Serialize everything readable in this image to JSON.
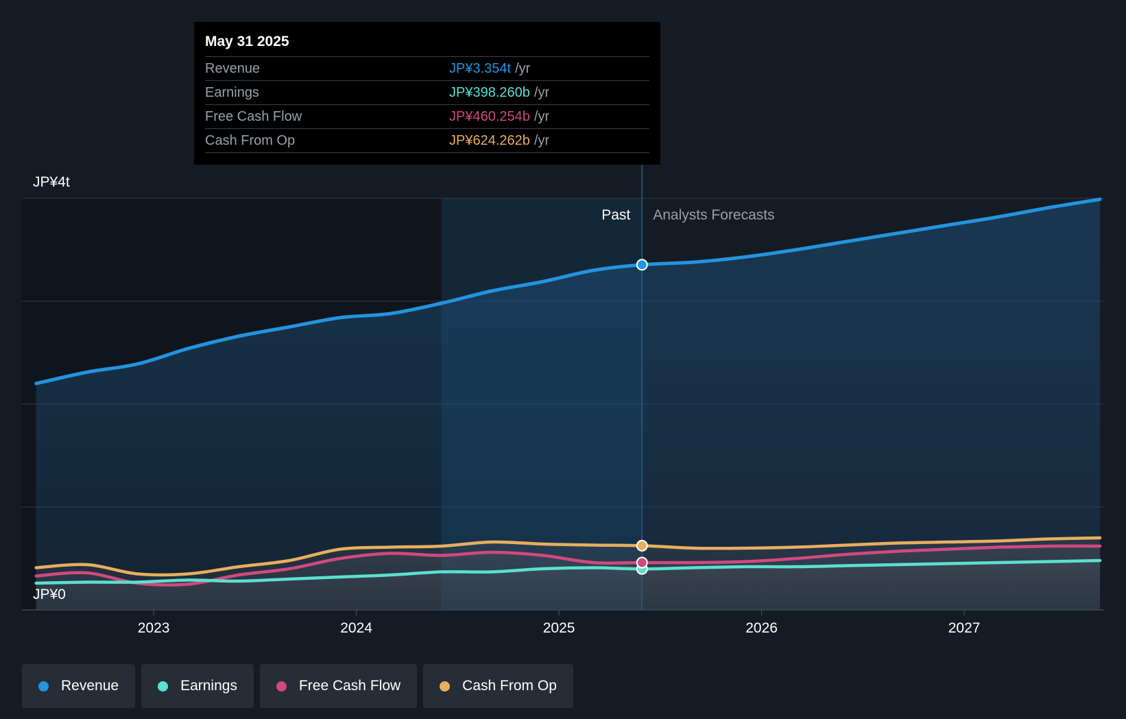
{
  "tooltip": {
    "date": "May 31 2025",
    "rows": [
      {
        "label": "Revenue",
        "value": "JP¥3.354t",
        "unit": "/yr",
        "color": "#2394df"
      },
      {
        "label": "Earnings",
        "value": "JP¥398.260b",
        "unit": "/yr",
        "color": "#5ce0cf"
      },
      {
        "label": "Free Cash Flow",
        "value": "JP¥460.254b",
        "unit": "/yr",
        "color": "#d1497f"
      },
      {
        "label": "Cash From Op",
        "value": "JP¥624.262b",
        "unit": "/yr",
        "color": "#e8ae5e"
      }
    ]
  },
  "legend": [
    {
      "label": "Revenue",
      "color": "#2394df"
    },
    {
      "label": "Earnings",
      "color": "#5ce0cf"
    },
    {
      "label": "Free Cash Flow",
      "color": "#d1497f"
    },
    {
      "label": "Cash From Op",
      "color": "#e8ae5e"
    }
  ],
  "chart_data": {
    "type": "area",
    "unit": "JP¥ trillion per year",
    "y_axis": {
      "min": 0,
      "max": 4,
      "top_label": "JP¥4t",
      "bottom_label": "JP¥0"
    },
    "x_axis": {
      "min": 2022.4,
      "max": 2027.7,
      "ticks": [
        "2023",
        "2024",
        "2025",
        "2026",
        "2027"
      ],
      "tick_values": [
        2023,
        2024,
        2025,
        2026,
        2027
      ]
    },
    "past_label": "Past",
    "forecast_label": "Analysts Forecasts",
    "highlight_start": 2024.42,
    "divider": 2025.41,
    "grid": true,
    "legend_position": "bottom-left",
    "series": [
      {
        "name": "Revenue",
        "color": "#2394df",
        "x": [
          2022.42,
          2022.67,
          2022.92,
          2023.17,
          2023.42,
          2023.67,
          2023.92,
          2024.17,
          2024.42,
          2024.67,
          2024.92,
          2025.17,
          2025.41,
          2025.67,
          2025.92,
          2026.17,
          2026.42,
          2026.67,
          2026.92,
          2027.17,
          2027.42,
          2027.67
        ],
        "values": [
          2.2,
          2.31,
          2.39,
          2.54,
          2.66,
          2.75,
          2.84,
          2.88,
          2.98,
          3.1,
          3.19,
          3.3,
          3.354,
          3.38,
          3.43,
          3.5,
          3.58,
          3.66,
          3.74,
          3.82,
          3.91,
          3.99
        ]
      },
      {
        "name": "Earnings",
        "color": "#5ce0cf",
        "x": [
          2022.42,
          2022.67,
          2022.92,
          2023.17,
          2023.42,
          2023.67,
          2023.92,
          2024.17,
          2024.42,
          2024.67,
          2024.92,
          2025.17,
          2025.41,
          2025.67,
          2025.92,
          2026.17,
          2026.42,
          2026.67,
          2026.92,
          2027.17,
          2027.42,
          2027.67
        ],
        "values": [
          0.26,
          0.27,
          0.27,
          0.29,
          0.28,
          0.3,
          0.32,
          0.34,
          0.37,
          0.37,
          0.4,
          0.41,
          0.398,
          0.41,
          0.42,
          0.42,
          0.43,
          0.44,
          0.45,
          0.46,
          0.47,
          0.48
        ]
      },
      {
        "name": "Free Cash Flow",
        "color": "#d1497f",
        "x": [
          2022.42,
          2022.67,
          2022.92,
          2023.17,
          2023.42,
          2023.67,
          2023.92,
          2024.17,
          2024.42,
          2024.67,
          2024.92,
          2025.17,
          2025.41,
          2025.67,
          2025.92,
          2026.17,
          2026.42,
          2026.67,
          2026.92,
          2027.17,
          2027.42,
          2027.67
        ],
        "values": [
          0.33,
          0.36,
          0.26,
          0.25,
          0.34,
          0.4,
          0.5,
          0.55,
          0.53,
          0.56,
          0.53,
          0.46,
          0.46,
          0.46,
          0.47,
          0.5,
          0.54,
          0.57,
          0.59,
          0.61,
          0.62,
          0.62
        ]
      },
      {
        "name": "Cash From Op",
        "color": "#e8ae5e",
        "x": [
          2022.42,
          2022.67,
          2022.92,
          2023.17,
          2023.42,
          2023.67,
          2023.92,
          2024.17,
          2024.42,
          2024.67,
          2024.92,
          2025.17,
          2025.41,
          2025.67,
          2025.92,
          2026.17,
          2026.42,
          2026.67,
          2026.92,
          2027.17,
          2027.42,
          2027.67
        ],
        "values": [
          0.41,
          0.44,
          0.35,
          0.35,
          0.42,
          0.48,
          0.59,
          0.61,
          0.62,
          0.66,
          0.64,
          0.63,
          0.624,
          0.6,
          0.6,
          0.61,
          0.63,
          0.65,
          0.66,
          0.67,
          0.69,
          0.7
        ]
      }
    ]
  }
}
